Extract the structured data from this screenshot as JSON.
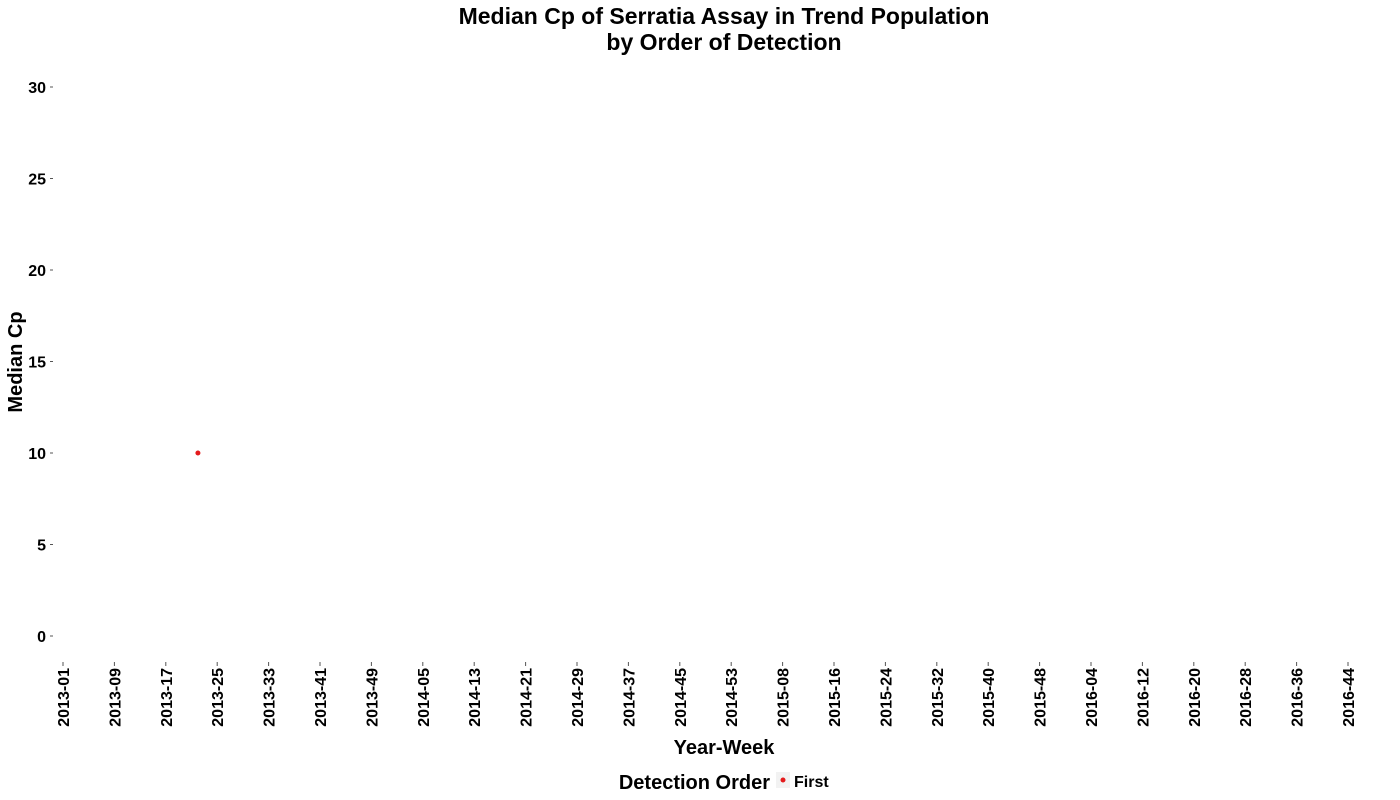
{
  "chart_data": {
    "type": "scatter",
    "title": [
      "Median Cp of Serratia Assay in Trend Population",
      "by Order of Detection"
    ],
    "xlabel": "Year-Week",
    "ylabel": "Median Cp",
    "ylim": [
      0,
      30
    ],
    "y_ticks": [
      0,
      5,
      10,
      15,
      20,
      25,
      30
    ],
    "x_categories": [
      "2013-01",
      "2013-09",
      "2013-17",
      "2013-25",
      "2013-33",
      "2013-41",
      "2013-49",
      "2014-05",
      "2014-13",
      "2014-21",
      "2014-29",
      "2014-37",
      "2014-45",
      "2014-53",
      "2015-08",
      "2015-16",
      "2015-24",
      "2015-32",
      "2015-40",
      "2015-48",
      "2016-04",
      "2016-12",
      "2016-20",
      "2016-28",
      "2016-36",
      "2016-44"
    ],
    "x_week_step": 8,
    "grid": false,
    "legend": {
      "title": "Detection Order",
      "position": "bottom",
      "entries": [
        {
          "name": "First",
          "color": "#e41a1c"
        }
      ]
    },
    "series": [
      {
        "name": "First",
        "color": "#e41a1c",
        "points": [
          {
            "x": "2013-22",
            "y": 10
          }
        ]
      }
    ]
  }
}
